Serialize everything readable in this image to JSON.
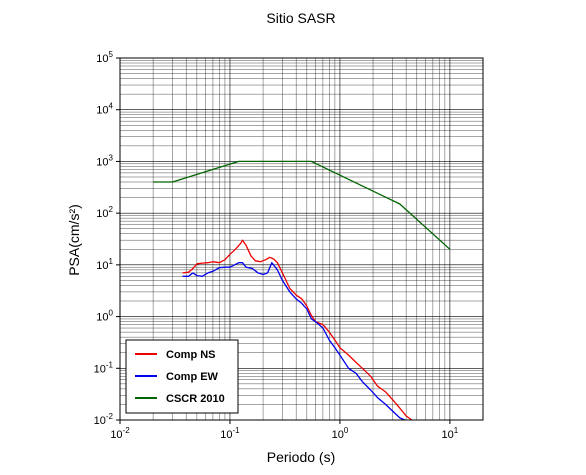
{
  "chart_data": {
    "type": "line",
    "title": "Sitio SASR",
    "xlabel": "Periodo (s)",
    "ylabel": "PSA(cm/s²)",
    "x_scale": "log",
    "y_scale": "log",
    "xlim": [
      0.01,
      20
    ],
    "ylim": [
      0.01,
      100000
    ],
    "grid": true,
    "legend_position": "bottom-left",
    "x_tick_labels": [
      {
        "value": 0.01,
        "base": "10",
        "exp": "-2"
      },
      {
        "value": 0.1,
        "base": "10",
        "exp": "-1"
      },
      {
        "value": 1,
        "base": "10",
        "exp": "0"
      },
      {
        "value": 10,
        "base": "10",
        "exp": "1"
      }
    ],
    "y_tick_labels": [
      {
        "value": 0.01,
        "base": "10",
        "exp": "-2"
      },
      {
        "value": 0.1,
        "base": "10",
        "exp": "-1"
      },
      {
        "value": 1,
        "base": "10",
        "exp": "0"
      },
      {
        "value": 10,
        "base": "10",
        "exp": "1"
      },
      {
        "value": 100,
        "base": "10",
        "exp": "2"
      },
      {
        "value": 1000,
        "base": "10",
        "exp": "3"
      },
      {
        "value": 10000,
        "base": "10",
        "exp": "4"
      },
      {
        "value": 100000,
        "base": "10",
        "exp": "5"
      }
    ],
    "series": [
      {
        "name": "Comp NS",
        "color": "#ee0000",
        "points": [
          [
            0.037,
            7.0
          ],
          [
            0.042,
            7.2
          ],
          [
            0.046,
            8.5
          ],
          [
            0.05,
            10.5
          ],
          [
            0.056,
            10.8
          ],
          [
            0.063,
            11.0
          ],
          [
            0.07,
            11.5
          ],
          [
            0.08,
            11.0
          ],
          [
            0.09,
            12.5
          ],
          [
            0.1,
            16.0
          ],
          [
            0.112,
            20.0
          ],
          [
            0.125,
            26.0
          ],
          [
            0.13,
            30.0
          ],
          [
            0.14,
            24.0
          ],
          [
            0.155,
            15.0
          ],
          [
            0.17,
            12.0
          ],
          [
            0.19,
            11.5
          ],
          [
            0.21,
            12.5
          ],
          [
            0.23,
            14.0
          ],
          [
            0.25,
            13.0
          ],
          [
            0.27,
            11.0
          ],
          [
            0.3,
            7.0
          ],
          [
            0.35,
            3.5
          ],
          [
            0.4,
            2.6
          ],
          [
            0.45,
            2.2
          ],
          [
            0.5,
            1.6
          ],
          [
            0.55,
            1.05
          ],
          [
            0.6,
            0.8
          ],
          [
            0.7,
            0.7
          ],
          [
            0.8,
            0.5
          ],
          [
            0.9,
            0.35
          ],
          [
            1.0,
            0.25
          ],
          [
            1.2,
            0.18
          ],
          [
            1.4,
            0.13
          ],
          [
            1.6,
            0.1
          ],
          [
            1.9,
            0.07
          ],
          [
            2.2,
            0.045
          ],
          [
            2.6,
            0.035
          ],
          [
            3.0,
            0.025
          ],
          [
            3.5,
            0.017
          ],
          [
            4.0,
            0.012
          ],
          [
            4.5,
            0.01
          ]
        ]
      },
      {
        "name": "Comp EW",
        "color": "#0000ee",
        "points": [
          [
            0.037,
            6.0
          ],
          [
            0.042,
            6.0
          ],
          [
            0.046,
            7.0
          ],
          [
            0.05,
            6.2
          ],
          [
            0.056,
            6.0
          ],
          [
            0.063,
            7.0
          ],
          [
            0.07,
            7.5
          ],
          [
            0.08,
            8.8
          ],
          [
            0.09,
            9.0
          ],
          [
            0.1,
            9.0
          ],
          [
            0.11,
            10.0
          ],
          [
            0.12,
            11.0
          ],
          [
            0.13,
            11.0
          ],
          [
            0.14,
            9.0
          ],
          [
            0.16,
            8.5
          ],
          [
            0.18,
            7.0
          ],
          [
            0.2,
            6.5
          ],
          [
            0.22,
            7.0
          ],
          [
            0.24,
            11.0
          ],
          [
            0.27,
            8.0
          ],
          [
            0.3,
            5.0
          ],
          [
            0.35,
            3.0
          ],
          [
            0.4,
            2.2
          ],
          [
            0.45,
            1.8
          ],
          [
            0.5,
            1.4
          ],
          [
            0.55,
            0.9
          ],
          [
            0.6,
            0.8
          ],
          [
            0.7,
            0.6
          ],
          [
            0.8,
            0.35
          ],
          [
            0.9,
            0.25
          ],
          [
            1.0,
            0.18
          ],
          [
            1.2,
            0.1
          ],
          [
            1.4,
            0.08
          ],
          [
            1.6,
            0.055
          ],
          [
            1.9,
            0.038
          ],
          [
            2.2,
            0.027
          ],
          [
            2.6,
            0.02
          ],
          [
            3.0,
            0.015
          ],
          [
            3.5,
            0.011
          ],
          [
            3.9,
            0.01
          ]
        ]
      },
      {
        "name": "CSCR 2010",
        "color": "#006400",
        "points": [
          [
            0.02,
            400
          ],
          [
            0.03,
            400
          ],
          [
            0.12,
            1000
          ],
          [
            0.55,
            1000
          ],
          [
            3.5,
            150
          ],
          [
            10,
            20
          ]
        ]
      }
    ]
  }
}
